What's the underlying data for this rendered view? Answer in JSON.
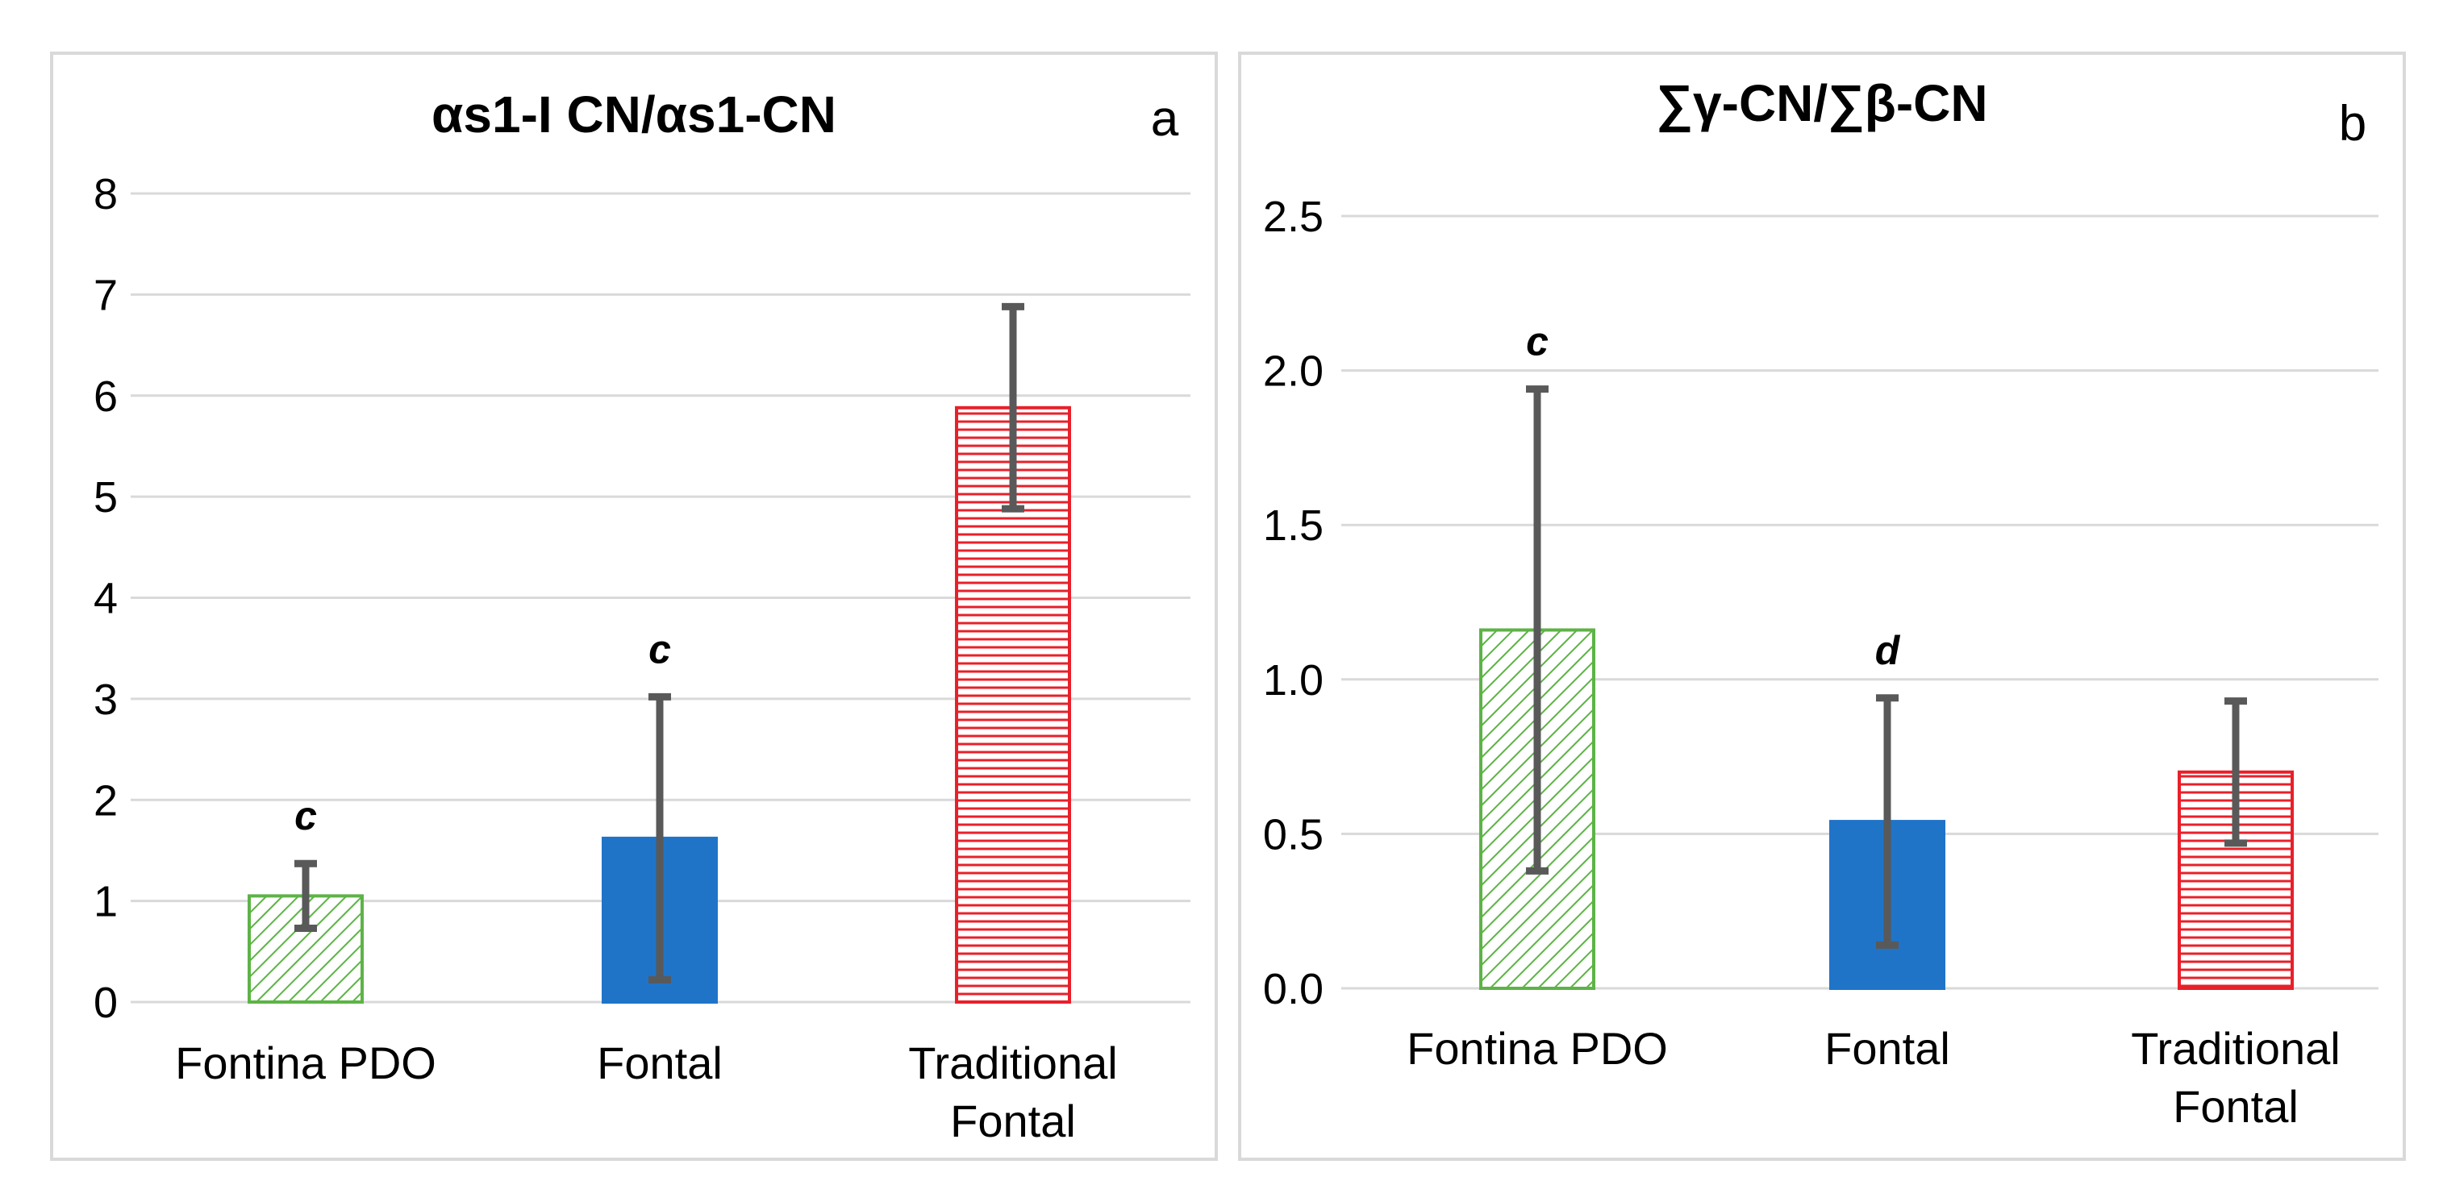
{
  "chart_data": [
    {
      "type": "bar",
      "panel_letter": "a",
      "title": "αs1-I CN/αs1-CN",
      "xlabel": "",
      "ylabel": "",
      "ylim": [
        0,
        8
      ],
      "yticks": [
        0,
        1,
        2,
        3,
        4,
        5,
        6,
        7,
        8
      ],
      "ytick_labels": [
        "0",
        "1",
        "2",
        "3",
        "4",
        "5",
        "6",
        "7",
        "8"
      ],
      "grid": true,
      "categories": [
        [
          "Fontina PDO"
        ],
        [
          "Fontal"
        ],
        [
          "Traditional",
          "Fontal"
        ]
      ],
      "values": [
        1.05,
        1.62,
        5.88
      ],
      "errors": [
        0.32,
        1.4,
        1.0
      ],
      "significance_letters": [
        "c",
        "c",
        ""
      ],
      "bar_styles": [
        "hatch-green",
        "solid-blue",
        "hatch-red"
      ]
    },
    {
      "type": "bar",
      "panel_letter": "b",
      "title": "∑γ-CN/∑β-CN",
      "xlabel": "",
      "ylabel": "",
      "ylim": [
        0,
        2.5
      ],
      "yticks": [
        0,
        0.5,
        1,
        1.5,
        2,
        2.5
      ],
      "ytick_labels": [
        "0.0",
        "0.5",
        "1.0",
        "1.5",
        "2.0",
        "2.5"
      ],
      "grid": true,
      "categories": [
        [
          "Fontina PDO"
        ],
        [
          "Fontal"
        ],
        [
          "Traditional",
          "Fontal"
        ]
      ],
      "values": [
        1.16,
        0.54,
        0.7
      ],
      "errors": [
        0.78,
        0.4,
        0.23
      ],
      "significance_letters": [
        "c",
        "d",
        ""
      ],
      "bar_styles": [
        "hatch-green",
        "solid-blue",
        "hatch-red"
      ]
    }
  ],
  "colors": {
    "green": "#5db346",
    "blue": "#1f74c8",
    "red": "#e8202a",
    "error_bar": "#595959",
    "grid": "#d9d9d9",
    "text": "#000000"
  }
}
